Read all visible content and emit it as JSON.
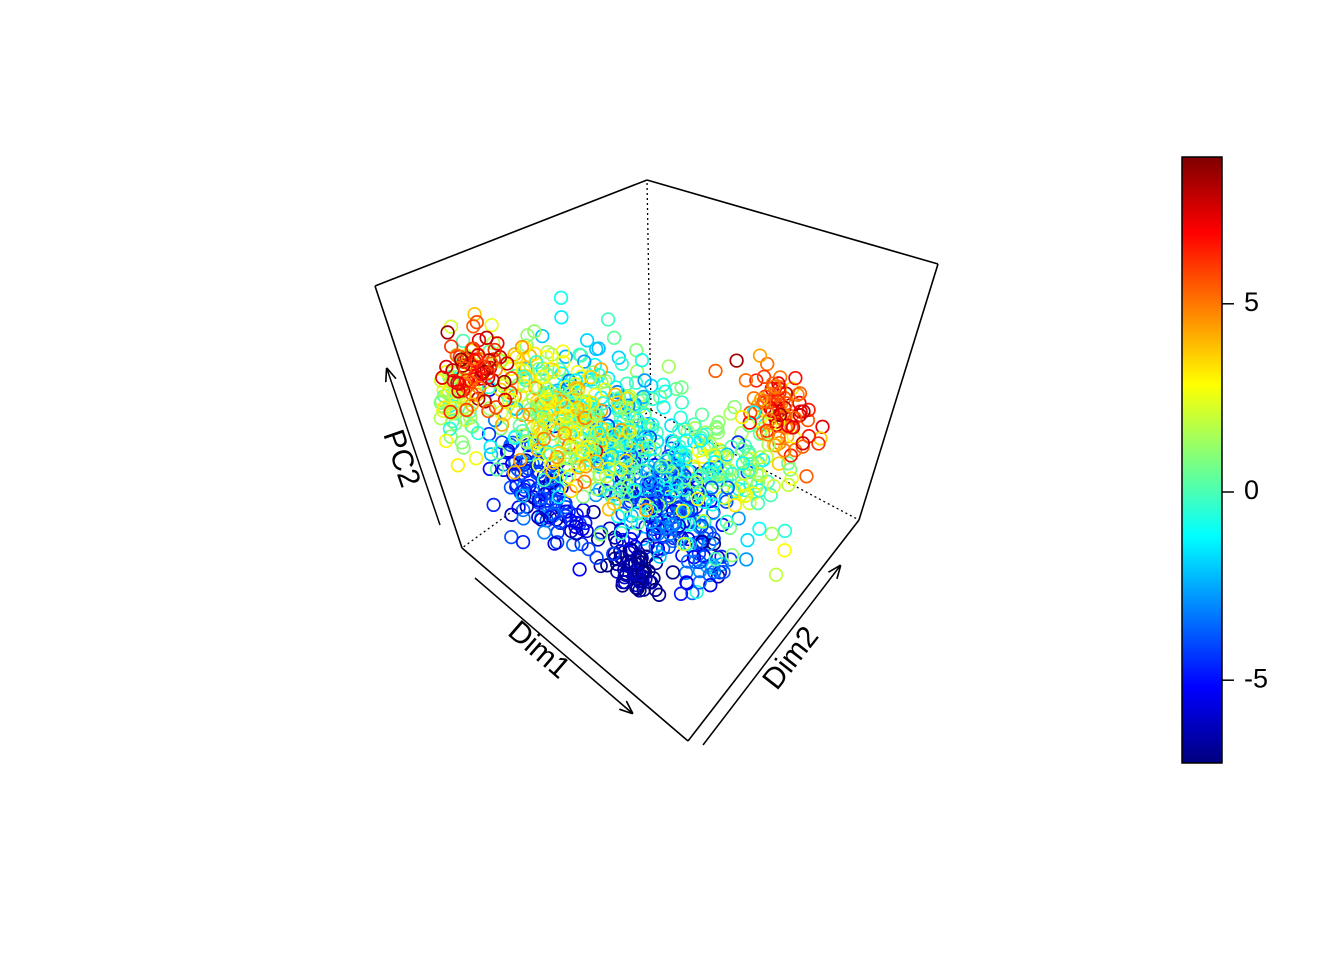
{
  "chart_data": {
    "type": "scatter",
    "projection": "3d-box",
    "title": "",
    "axes": {
      "x": {
        "label": "Dim1"
      },
      "y": {
        "label": "Dim2"
      },
      "z": {
        "label": "PC2"
      }
    },
    "point_style": "open-circle",
    "color_scale": {
      "palette": "jet",
      "colors": [
        "#00007F",
        "#0000FF",
        "#007FFF",
        "#00FFFF",
        "#7FFF7F",
        "#FFFF00",
        "#FF7F00",
        "#FF0000",
        "#7F0000"
      ],
      "range": [
        -7.2,
        8.9
      ],
      "ticks": [
        -5,
        0,
        5
      ],
      "tick_labels": [
        "-5",
        "0",
        "5"
      ]
    },
    "clusters": [
      {
        "name_hint": "upper-left-red",
        "center": [
          0.38,
          0.05,
          0.92
        ],
        "spread": [
          0.05,
          0.06,
          0.06
        ],
        "n": 70,
        "value_mean": 6.5,
        "value_sd": 1.3
      },
      {
        "name_hint": "left-arm-yellow",
        "center": [
          0.08,
          0.1,
          0.58
        ],
        "spread": [
          0.06,
          0.06,
          0.07
        ],
        "n": 80,
        "value_mean": 1.5,
        "value_sd": 1.0
      },
      {
        "name_hint": "upper-body",
        "center": [
          0.5,
          0.22,
          0.78
        ],
        "spread": [
          0.16,
          0.1,
          0.08
        ],
        "n": 260,
        "value_mean": 2.2,
        "value_sd": 1.5
      },
      {
        "name_hint": "center-cyan",
        "center": [
          0.55,
          0.45,
          0.6
        ],
        "spread": [
          0.18,
          0.14,
          0.08
        ],
        "n": 330,
        "value_mean": -0.8,
        "value_sd": 1.4
      },
      {
        "name_hint": "right-tail-red",
        "center": [
          0.92,
          0.9,
          0.72
        ],
        "spread": [
          0.05,
          0.06,
          0.06
        ],
        "n": 90,
        "value_mean": 5.5,
        "value_sd": 1.4
      },
      {
        "name_hint": "lower-left-blue",
        "center": [
          0.3,
          0.22,
          0.32
        ],
        "spread": [
          0.1,
          0.07,
          0.07
        ],
        "n": 120,
        "value_mean": -4.6,
        "value_sd": 1.1
      },
      {
        "name_hint": "bottom-dark-blue",
        "center": [
          0.58,
          0.3,
          0.18
        ],
        "spread": [
          0.05,
          0.04,
          0.04
        ],
        "n": 70,
        "value_mean": -6.7,
        "value_sd": 0.4
      },
      {
        "name_hint": "lower-mid-blue",
        "center": [
          0.66,
          0.48,
          0.36
        ],
        "spread": [
          0.12,
          0.1,
          0.08
        ],
        "n": 220,
        "value_mean": -4.2,
        "value_sd": 1.2
      },
      {
        "name_hint": "right-mid-green",
        "center": [
          0.8,
          0.7,
          0.55
        ],
        "spread": [
          0.1,
          0.1,
          0.08
        ],
        "n": 120,
        "value_mean": 0.8,
        "value_sd": 1.5
      }
    ]
  }
}
